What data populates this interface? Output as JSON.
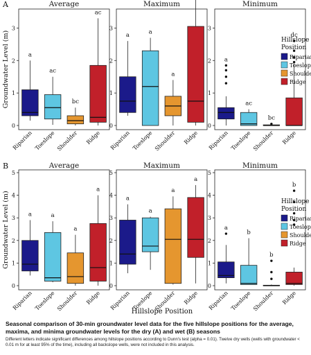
{
  "caption": {
    "title": "Seasonal comparison of 30-min groundwater level data for the five hillslope positions for the average, maxima, and minima groundwater levels for the dry (A) and wet (B) seasons",
    "note": "Different letters indicate significant differences among hillslope positions according to Dunn's test (alpha = 0.01). Twelve dry wells (wells with groundwater < 0.01 m for at least 95% of the time), including all backslope wells, were not included in this analysis."
  },
  "legend": {
    "title_line1": "Hillslope",
    "title_line2": "Position",
    "items": [
      {
        "label": "Riparian",
        "color": "#1b1a8a"
      },
      {
        "label": "Toeslope",
        "color": "#5ec6e2"
      },
      {
        "label": "Shoulder",
        "color": "#e5962f"
      },
      {
        "label": "Ridge",
        "color": "#c1202a"
      }
    ]
  },
  "chart_data": [
    {
      "type": "box",
      "panel_label": "A",
      "row": 0,
      "col": 0,
      "title": "Average",
      "ylabel": "Groundwater Level (m)",
      "ylim": [
        0,
        3.5
      ],
      "yticks": [
        0,
        1,
        2,
        3
      ],
      "categories": [
        "Riparian",
        "Toeslope",
        "Shoulder",
        "Ridge"
      ],
      "boxes": [
        {
          "min": 0.15,
          "q1": 0.3,
          "median": 0.4,
          "q3": 1.1,
          "max": 2.0,
          "outliers": [],
          "letter": "a"
        },
        {
          "min": 0.02,
          "q1": 0.2,
          "median": 0.55,
          "q3": 0.95,
          "max": 1.5,
          "outliers": [],
          "letter": "ac"
        },
        {
          "min": 0.0,
          "q1": 0.05,
          "median": 0.15,
          "q3": 0.3,
          "max": 0.55,
          "outliers": [],
          "letter": "bc"
        },
        {
          "min": 0.0,
          "q1": 0.1,
          "median": 0.25,
          "q3": 1.85,
          "max": 3.3,
          "outliers": [],
          "letter": "ac"
        }
      ]
    },
    {
      "type": "box",
      "panel_label": "",
      "row": 0,
      "col": 1,
      "title": "Maximum",
      "ylabel": "",
      "ylim": [
        0,
        3.5
      ],
      "yticks": [
        0,
        1,
        2,
        3
      ],
      "categories": [
        "Riparian",
        "Toeslope",
        "Shoulder",
        "Ridge"
      ],
      "boxes": [
        {
          "min": 0.3,
          "q1": 0.4,
          "median": 0.75,
          "q3": 1.5,
          "max": 2.6,
          "outliers": [],
          "letter": "a"
        },
        {
          "min": 0.0,
          "q1": 0.0,
          "median": 1.2,
          "q3": 2.3,
          "max": 2.7,
          "outliers": [],
          "letter": "a"
        },
        {
          "min": 0.0,
          "q1": 0.3,
          "median": 0.6,
          "q3": 0.9,
          "max": 1.4,
          "outliers": [],
          "letter": "a"
        },
        {
          "min": 0.0,
          "q1": 0.1,
          "median": 0.75,
          "q3": 3.05,
          "max": 3.9,
          "outliers": [],
          "letter": "a"
        }
      ]
    },
    {
      "type": "box",
      "panel_label": "",
      "row": 0,
      "col": 2,
      "title": "Minimum",
      "ylabel": "",
      "ylim": [
        0,
        3.5
      ],
      "yticks": [
        0,
        1,
        2,
        3
      ],
      "categories": [
        "Riparian",
        "Toeslope",
        "Shoulder",
        "Ridge"
      ],
      "boxes": [
        {
          "min": 0.0,
          "q1": 0.2,
          "median": 0.4,
          "q3": 0.55,
          "max": 0.9,
          "outliers": [
            1.3,
            1.5,
            1.7,
            1.85
          ],
          "letter": "a"
        },
        {
          "min": 0.0,
          "q1": 0.0,
          "median": 0.05,
          "q3": 0.4,
          "max": 0.5,
          "outliers": [],
          "letter": "ac"
        },
        {
          "min": 0.0,
          "q1": 0.0,
          "median": 0.0,
          "q3": 0.02,
          "max": 0.03,
          "outliers": [
            0.05
          ],
          "letter": "bc"
        },
        {
          "min": 0.0,
          "q1": 0.0,
          "median": 0.0,
          "q3": 0.85,
          "max": 1.9,
          "outliers": [
            1.95,
            2.1,
            2.3,
            2.6
          ],
          "letter": "dc"
        }
      ]
    },
    {
      "type": "box",
      "panel_label": "B",
      "row": 1,
      "col": 0,
      "title": "Average",
      "ylabel": "Groundwater Level (m)",
      "ylim": [
        0,
        5
      ],
      "yticks": [
        0,
        1,
        2,
        3,
        4,
        5
      ],
      "categories": [
        "Riparian",
        "Toeslope",
        "Shoulder",
        "Ridge"
      ],
      "boxes": [
        {
          "min": 0.45,
          "q1": 0.65,
          "median": 0.95,
          "q3": 2.0,
          "max": 2.9,
          "outliers": [],
          "letter": "a"
        },
        {
          "min": 0.15,
          "q1": 0.2,
          "median": 0.35,
          "q3": 2.35,
          "max": 2.85,
          "outliers": [],
          "letter": "a"
        },
        {
          "min": 0.0,
          "q1": 0.1,
          "median": 0.4,
          "q3": 1.45,
          "max": 2.25,
          "outliers": [],
          "letter": "a"
        },
        {
          "min": 0.0,
          "q1": 0.2,
          "median": 0.8,
          "q3": 2.75,
          "max": 4.0,
          "outliers": [],
          "letter": "a"
        }
      ]
    },
    {
      "type": "box",
      "panel_label": "",
      "row": 1,
      "col": 1,
      "title": "Maximum",
      "ylabel": "",
      "ylim": [
        0,
        5
      ],
      "yticks": [
        0,
        1,
        2,
        3,
        4,
        5
      ],
      "categories": [
        "Riparian",
        "Toeslope",
        "Shoulder",
        "Ridge"
      ],
      "boxes": [
        {
          "min": 0.55,
          "q1": 0.95,
          "median": 1.4,
          "q3": 2.9,
          "max": 3.6,
          "outliers": [],
          "letter": "a"
        },
        {
          "min": 0.7,
          "q1": 1.5,
          "median": 1.75,
          "q3": 3.0,
          "max": 3.05,
          "outliers": [],
          "letter": "a"
        },
        {
          "min": 0.05,
          "q1": 0.1,
          "median": 2.05,
          "q3": 3.4,
          "max": 3.95,
          "outliers": [],
          "letter": "a"
        },
        {
          "min": 0.1,
          "q1": 1.25,
          "median": 2.05,
          "q3": 3.9,
          "max": 4.45,
          "outliers": [],
          "letter": "a"
        }
      ]
    },
    {
      "type": "box",
      "panel_label": "",
      "row": 1,
      "col": 2,
      "title": "Minimum",
      "ylabel": "",
      "ylim": [
        0,
        5
      ],
      "yticks": [
        0,
        1,
        2,
        3,
        4,
        5
      ],
      "categories": [
        "Riparian",
        "Toeslope",
        "Shoulder",
        "Ridge"
      ],
      "boxes": [
        {
          "min": 0.1,
          "q1": 0.35,
          "median": 0.45,
          "q3": 1.05,
          "max": 1.8,
          "outliers": [
            2.3
          ],
          "letter": "a"
        },
        {
          "min": 0.05,
          "q1": 0.05,
          "median": 0.1,
          "q3": 0.9,
          "max": 2.1,
          "outliers": [],
          "letter": "b"
        },
        {
          "min": 0.0,
          "q1": 0.0,
          "median": 0.0,
          "q3": 0.02,
          "max": 0.05,
          "outliers": [
            0.3,
            0.6,
            1.1
          ],
          "letter": "b"
        },
        {
          "min": 0.0,
          "q1": 0.05,
          "median": 0.1,
          "q3": 0.6,
          "max": 0.8,
          "outliers": [
            2.7,
            2.9,
            3.2,
            3.7,
            4.2
          ],
          "letter": "b"
        }
      ]
    }
  ],
  "x_axis_title": "Hillslope Position"
}
